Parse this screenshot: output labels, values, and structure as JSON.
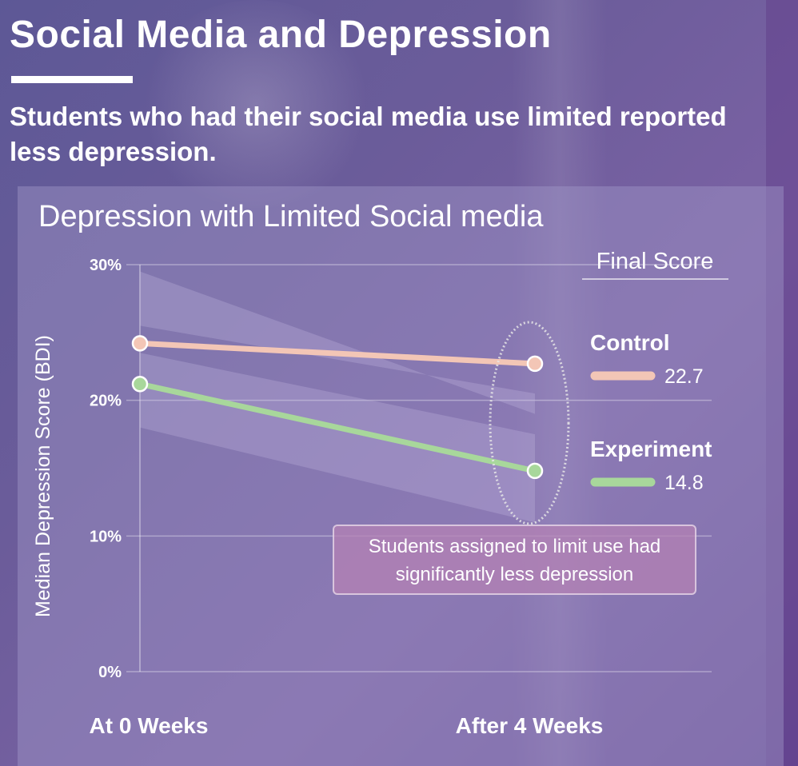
{
  "header": {
    "title": "Social Media and Depression",
    "subtitle": "Students who had their social media use limited reported less depression."
  },
  "chart_data": {
    "type": "line",
    "title": "Depression with Limited Social media",
    "ylabel": "Median Depression Score (BDI)",
    "xlabel": "",
    "categories": [
      "At 0 Weeks",
      "After 4 Weeks"
    ],
    "yticks": [
      "30%",
      "20%",
      "10%",
      "0%"
    ],
    "ylim": [
      0,
      30
    ],
    "grid": true,
    "legend_title": "Final Score",
    "legend_position": "right",
    "series": [
      {
        "name": "Control",
        "values": [
          24.2,
          22.7
        ],
        "final_label": "22.7",
        "color": "#f3c6b6",
        "band": [
          [
            29.5,
            19.0
          ],
          [
            25.5,
            20.5
          ]
        ]
      },
      {
        "name": "Experiment",
        "values": [
          21.2,
          14.8
        ],
        "final_label": "14.8",
        "color": "#a8d79b",
        "band": [
          [
            23.5,
            17.5
          ],
          [
            18.0,
            11.0
          ]
        ]
      }
    ],
    "annotation": "Students assigned to limit use had significantly less depression"
  }
}
